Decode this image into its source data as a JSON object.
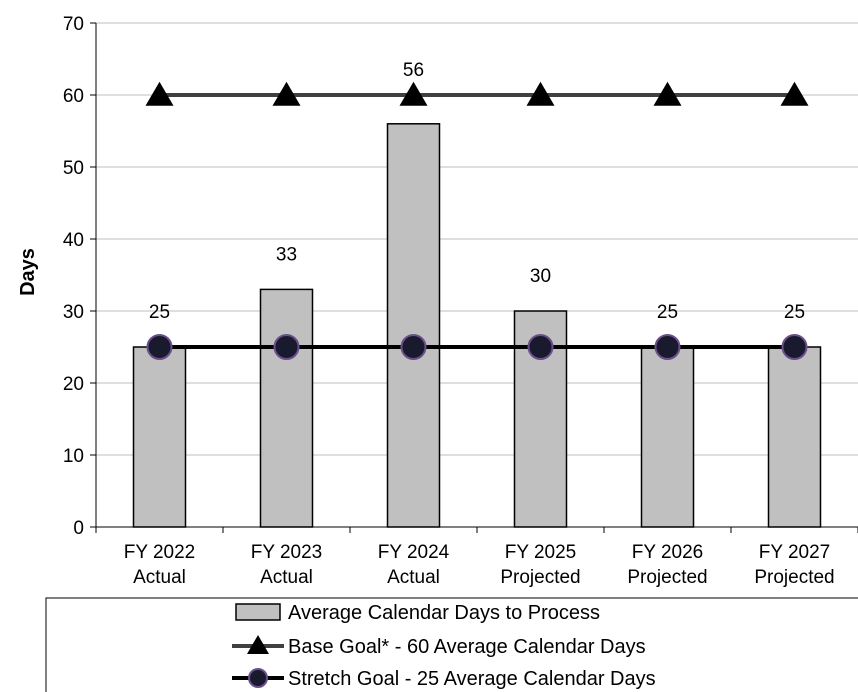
{
  "chart_data": {
    "type": "bar",
    "categories": [
      [
        "FY 2022",
        "Actual"
      ],
      [
        "FY 2023",
        "Actual"
      ],
      [
        "FY 2024",
        "Actual"
      ],
      [
        "FY 2025",
        "Projected"
      ],
      [
        "FY 2026",
        "Projected"
      ],
      [
        "FY 2027",
        "Projected"
      ]
    ],
    "series": [
      {
        "name": "Average Calendar Days to Process",
        "kind": "bar",
        "color": "#c0c0c0",
        "values": [
          25,
          33,
          56,
          30,
          25,
          25
        ],
        "labels": [
          "25",
          "33",
          "56",
          "30",
          "25",
          "25"
        ]
      },
      {
        "name": "Base Goal* - 60 Average Calendar Days",
        "kind": "line",
        "marker": "triangle",
        "color": "#404040",
        "values": [
          60,
          60,
          60,
          60,
          60,
          60
        ]
      },
      {
        "name": "Stretch Goal - 25 Average Calendar Days",
        "kind": "line",
        "marker": "circle",
        "color": "#000000",
        "marker_fill": "#1a1a2e",
        "values": [
          25,
          25,
          25,
          25,
          25,
          25
        ]
      }
    ],
    "title": "",
    "xlabel": "",
    "ylabel": "Days",
    "ylim": [
      0,
      70
    ],
    "yticks": [
      0,
      10,
      20,
      30,
      40,
      50,
      60,
      70
    ],
    "grid": true,
    "legend_position": "bottom"
  }
}
